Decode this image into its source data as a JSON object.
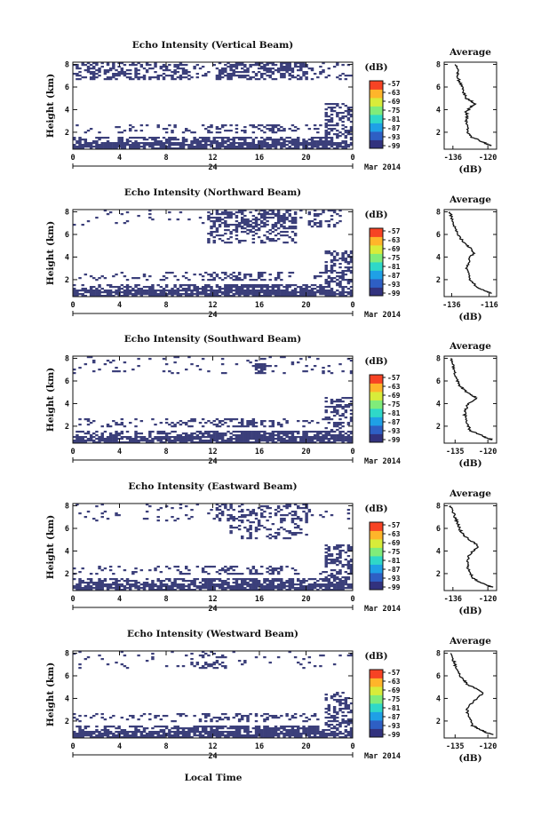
{
  "chart_data": {
    "type": "heatmap",
    "date_label": "Mar 2014",
    "x_bottom_label": "Local Time",
    "x_ticks": [
      "0",
      "4",
      "8",
      "12",
      "16",
      "20",
      "0"
    ],
    "day_label": "24",
    "x_range": [
      0,
      24
    ],
    "y_ticks": [
      "2",
      "4",
      "6",
      "8"
    ],
    "y_range": [
      0.5,
      8
    ],
    "colorbar_unit": "(dB)",
    "colorbar_ticks": [
      "-57",
      "-63",
      "-69",
      "-75",
      "-81",
      "-87",
      "-93",
      "-99"
    ],
    "colormap": [
      "#32327e",
      "#2e5fc4",
      "#1fa0e6",
      "#2fd8c8",
      "#80ec7a",
      "#d8ec3a",
      "#ffb52a",
      "#f74324"
    ],
    "echo_color": "#3b3f7a",
    "avg_title": "Average",
    "avg_unit": "(dB)",
    "avg_y_ticks": [
      "2",
      "4",
      "6",
      "8"
    ],
    "panels": [
      {
        "title": "Echo Intensity (Vertical Beam)",
        "ylabel": "Height (km)",
        "avg_x_ticks": [
          "-136",
          "-120"
        ],
        "avg_x_range": [
          -140,
          -116
        ],
        "profile": [
          [
            -118.5,
            0.8
          ],
          [
            -121,
            1
          ],
          [
            -124,
            1.3
          ],
          [
            -128,
            1.6
          ],
          [
            -129,
            2
          ],
          [
            -129.5,
            2.5
          ],
          [
            -130,
            3
          ],
          [
            -129.5,
            3.5
          ],
          [
            -130,
            3.8
          ],
          [
            -128,
            4.2
          ],
          [
            -126,
            4.5
          ],
          [
            -128,
            4.8
          ],
          [
            -130,
            5
          ],
          [
            -131,
            5.5
          ],
          [
            -132,
            6
          ],
          [
            -133,
            6.5
          ],
          [
            -134,
            7
          ],
          [
            -134,
            7.5
          ],
          [
            -135,
            8
          ]
        ]
      },
      {
        "title": "Echo Intensity (Northward Beam)",
        "ylabel": "Height (km)",
        "avg_x_ticks": [
          "-136",
          "-116"
        ],
        "avg_x_range": [
          -140,
          -112
        ],
        "profile": [
          [
            -115,
            0.8
          ],
          [
            -118,
            1
          ],
          [
            -122,
            1.3
          ],
          [
            -124,
            1.6
          ],
          [
            -126,
            2
          ],
          [
            -127,
            2.5
          ],
          [
            -128,
            3
          ],
          [
            -127,
            3.5
          ],
          [
            -126,
            4
          ],
          [
            -124,
            4.4
          ],
          [
            -126,
            4.8
          ],
          [
            -129,
            5.2
          ],
          [
            -131,
            5.6
          ],
          [
            -133,
            6
          ],
          [
            -134,
            6.5
          ],
          [
            -135,
            7
          ],
          [
            -136,
            7.5
          ],
          [
            -137,
            8
          ]
        ]
      },
      {
        "title": "Echo Intensity (Southward Beam)",
        "ylabel": "Height (km)",
        "avg_x_ticks": [
          "-135",
          "-120"
        ],
        "avg_x_range": [
          -140,
          -116
        ],
        "profile": [
          [
            -118,
            0.8
          ],
          [
            -121,
            1
          ],
          [
            -124,
            1.3
          ],
          [
            -128,
            1.6
          ],
          [
            -129,
            2
          ],
          [
            -130,
            2.5
          ],
          [
            -130.5,
            3
          ],
          [
            -130,
            3.5
          ],
          [
            -129,
            4
          ],
          [
            -125,
            4.5
          ],
          [
            -128,
            4.8
          ],
          [
            -131,
            5.2
          ],
          [
            -133,
            5.6
          ],
          [
            -134,
            6
          ],
          [
            -135,
            6.5
          ],
          [
            -135.5,
            7
          ],
          [
            -136,
            7.5
          ],
          [
            -137,
            8
          ]
        ]
      },
      {
        "title": "Echo Intensity (Eastward Beam)",
        "ylabel": "Height (km)",
        "avg_x_ticks": [
          "-136",
          "-120"
        ],
        "avg_x_range": [
          -140,
          -116
        ],
        "profile": [
          [
            -118,
            0.8
          ],
          [
            -121,
            1
          ],
          [
            -124,
            1.3
          ],
          [
            -127,
            1.6
          ],
          [
            -128,
            2
          ],
          [
            -129,
            2.5
          ],
          [
            -129.5,
            3
          ],
          [
            -129,
            3.5
          ],
          [
            -127,
            4
          ],
          [
            -124,
            4.4
          ],
          [
            -127,
            4.8
          ],
          [
            -130,
            5.2
          ],
          [
            -132,
            5.6
          ],
          [
            -133,
            6
          ],
          [
            -134,
            6.5
          ],
          [
            -135,
            7
          ],
          [
            -136,
            7.5
          ],
          [
            -137,
            8
          ]
        ]
      },
      {
        "title": "Echo Intensity (Westward Beam)",
        "ylabel": "Height (km)",
        "avg_x_ticks": [
          "-135",
          "-120"
        ],
        "avg_x_range": [
          -140,
          -116
        ],
        "profile": [
          [
            -118,
            0.8
          ],
          [
            -121,
            1
          ],
          [
            -124,
            1.3
          ],
          [
            -127,
            1.6
          ],
          [
            -128,
            2
          ],
          [
            -129,
            2.5
          ],
          [
            -129.5,
            3
          ],
          [
            -128,
            3.5
          ],
          [
            -125,
            4
          ],
          [
            -122,
            4.5
          ],
          [
            -125,
            4.8
          ],
          [
            -129,
            5.2
          ],
          [
            -131,
            5.6
          ],
          [
            -133,
            6
          ],
          [
            -134,
            6.5
          ],
          [
            -135,
            7
          ],
          [
            -136,
            7.5
          ],
          [
            -137,
            8
          ]
        ]
      }
    ]
  }
}
